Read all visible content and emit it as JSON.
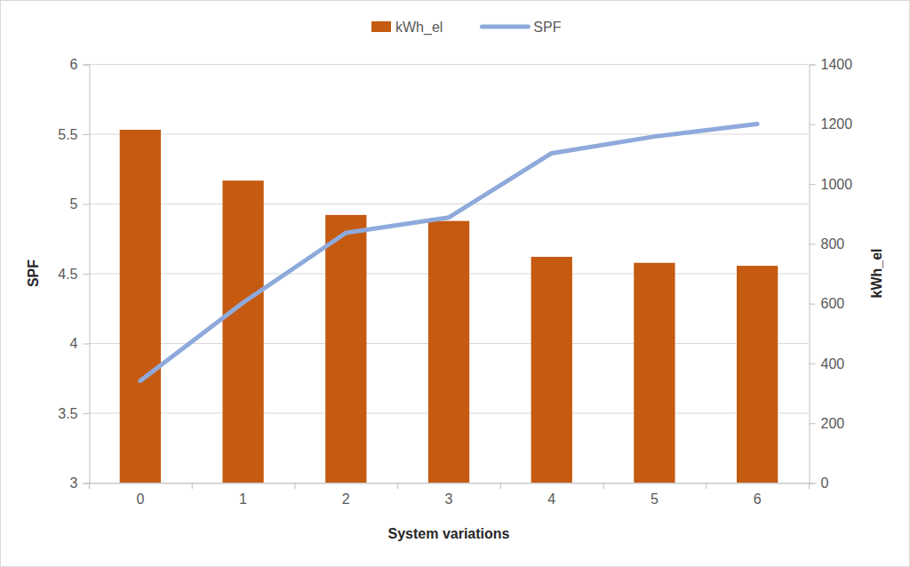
{
  "chart_data": {
    "type": "bar",
    "x_label": "System variations",
    "y_label": "SPF",
    "y2_label": "kWh_el",
    "categories": [
      "0",
      "1",
      "2",
      "3",
      "4",
      "5",
      "6"
    ],
    "series": [
      {
        "name": "kWh_el",
        "type": "bar",
        "color": "#c55a11",
        "axis": "y2",
        "values": [
          1180,
          1010,
          895,
          875,
          755,
          735,
          725
        ]
      },
      {
        "name": "SPF",
        "type": "line",
        "color": "#8eaadb",
        "values": [
          3.73,
          4.29,
          4.79,
          4.9,
          5.36,
          5.48,
          5.57
        ]
      }
    ],
    "ylim": [
      3,
      6
    ],
    "yticks": [
      3,
      3.5,
      4,
      4.5,
      5,
      5.5,
      6
    ],
    "y2lim": [
      0,
      1400
    ],
    "y2ticks": [
      0,
      200,
      400,
      600,
      800,
      1000,
      1200,
      1400
    ],
    "grid": true,
    "legend": "top"
  }
}
